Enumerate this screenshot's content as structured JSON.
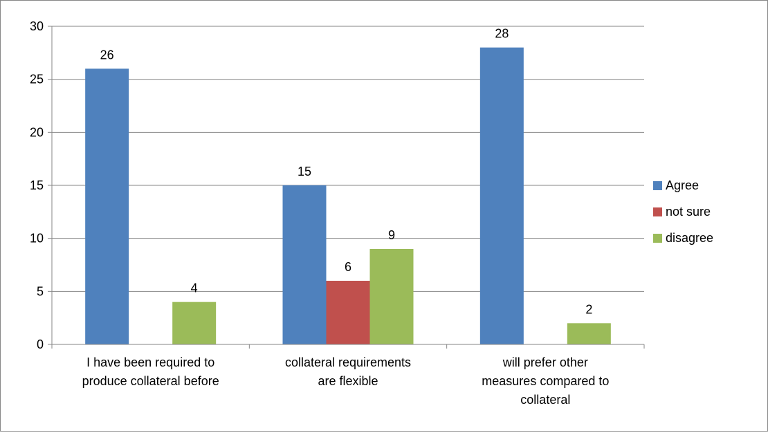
{
  "chart_data": {
    "type": "bar",
    "categories": [
      [
        "I have been required to",
        "produce collateral before"
      ],
      [
        "collateral requirements",
        "are flexible"
      ],
      [
        "will prefer other",
        "measures compared to",
        "collateral"
      ]
    ],
    "series": [
      {
        "name": "Agree",
        "color": "#4F81BD",
        "values": [
          26,
          15,
          28
        ]
      },
      {
        "name": "not sure",
        "color": "#C0504D",
        "values": [
          null,
          6,
          null
        ]
      },
      {
        "name": "disagree",
        "color": "#9BBB59",
        "values": [
          4,
          9,
          2
        ]
      }
    ],
    "ylim": [
      0,
      30
    ],
    "yticks": [
      0,
      5,
      10,
      15,
      20,
      25,
      30
    ],
    "grid": true,
    "legend_position": "right"
  }
}
